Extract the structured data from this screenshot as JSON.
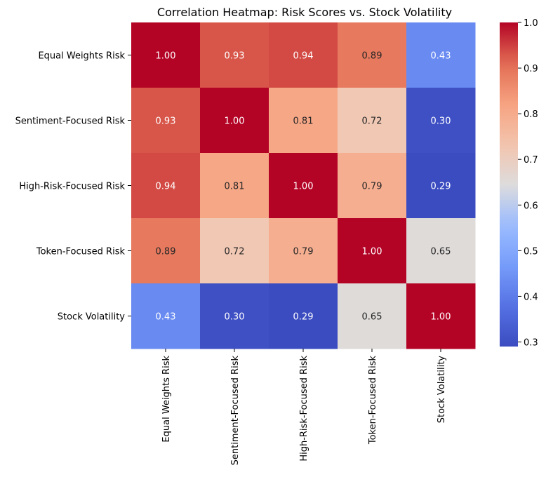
{
  "chart_data": {
    "type": "heatmap",
    "title": "Correlation Heatmap: Risk Scores vs. Stock Volatility",
    "rows": [
      "Equal Weights Risk",
      "Sentiment-Focused Risk",
      "High-Risk-Focused Risk",
      "Token-Focused Risk",
      "Stock Volatility"
    ],
    "columns": [
      "Equal Weights Risk",
      "Sentiment-Focused Risk",
      "High-Risk-Focused Risk",
      "Token-Focused Risk",
      "Stock Volatility"
    ],
    "values": [
      [
        1.0,
        0.93,
        0.94,
        0.89,
        0.43
      ],
      [
        0.93,
        1.0,
        0.81,
        0.72,
        0.3
      ],
      [
        0.94,
        0.81,
        1.0,
        0.79,
        0.29
      ],
      [
        0.89,
        0.72,
        0.79,
        1.0,
        0.65
      ],
      [
        0.43,
        0.3,
        0.29,
        0.65,
        1.0
      ]
    ],
    "annotation_format": "2 decimals",
    "colormap": "coolwarm",
    "color_range": [
      0.29,
      1.0
    ],
    "colorbar_ticks": [
      0.3,
      0.4,
      0.5,
      0.6,
      0.7,
      0.8,
      0.9,
      1.0
    ],
    "colorbar_tick_labels": [
      "0.3",
      "0.4",
      "0.5",
      "0.6",
      "0.7",
      "0.8",
      "0.9",
      "1.0"
    ],
    "colorbar_placement": "right",
    "grid": false
  }
}
